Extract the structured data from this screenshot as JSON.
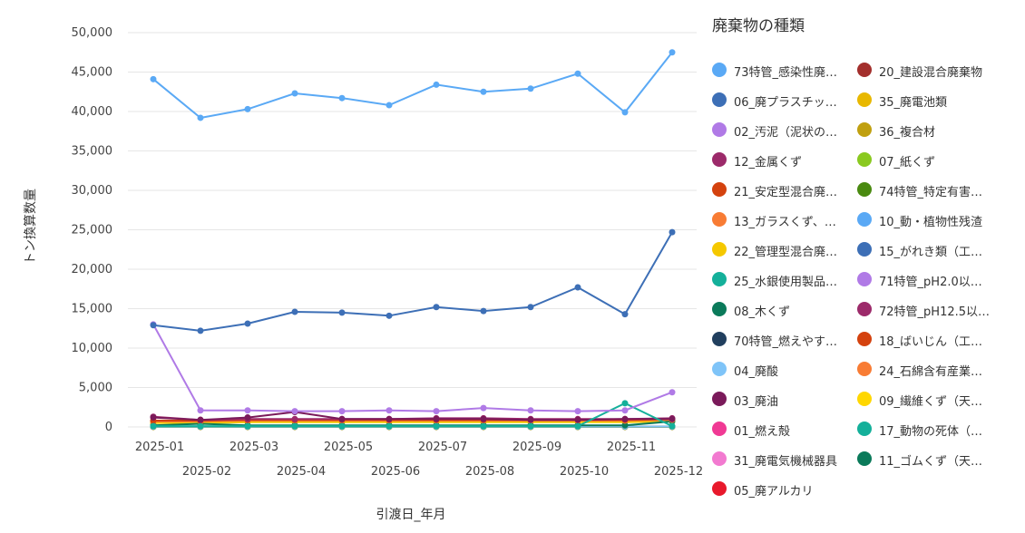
{
  "chart_data": {
    "type": "line",
    "xlabel": "引渡日_年月",
    "ylabel": "トン換算数量",
    "ylim": [
      0,
      50000
    ],
    "yticks": [
      0,
      5000,
      10000,
      15000,
      20000,
      25000,
      30000,
      35000,
      40000,
      45000,
      50000
    ],
    "ytick_labels": [
      "0",
      "5,000",
      "10,000",
      "15,000",
      "20,000",
      "25,000",
      "30,000",
      "35,000",
      "40,000",
      "45,000",
      "50,000"
    ],
    "categories": [
      "2025-01",
      "2025-02",
      "2025-03",
      "2025-04",
      "2025-05",
      "2025-06",
      "2025-07",
      "2025-08",
      "2025-09",
      "2025-10",
      "2025-11",
      "2025-12"
    ],
    "grid": true,
    "legend_placement": "right",
    "legend_title": "廃棄物の種類",
    "series": [
      {
        "name": "73特管_感染性廃…",
        "color": "#5aa9f5",
        "values": [
          44100,
          39200,
          40300,
          42300,
          41700,
          40800,
          43400,
          42500,
          42900,
          44800,
          39900,
          47500
        ]
      },
      {
        "name": "06_廃プラスチッ…",
        "color": "#3d6fb6",
        "values": [
          12900,
          12200,
          13100,
          14600,
          14500,
          14100,
          15200,
          14700,
          15200,
          17700,
          14300,
          24700
        ]
      },
      {
        "name": "02_汚泥（泥状の…",
        "color": "#b07ae6",
        "values": [
          13000,
          2100,
          2100,
          2000,
          2000,
          2100,
          2000,
          2400,
          2100,
          2000,
          2100,
          4400
        ]
      },
      {
        "name": "12_金属くず",
        "color": "#9c2a6a",
        "values": [
          1300,
          900,
          1000,
          1000,
          1000,
          1000,
          1100,
          1100,
          1000,
          1000,
          1000,
          1100
        ]
      },
      {
        "name": "21_安定型混合廃…",
        "color": "#d4420e",
        "values": [
          800,
          800,
          900,
          900,
          900,
          900,
          900,
          900,
          900,
          900,
          900,
          1000
        ]
      },
      {
        "name": "13_ガラスくず、…",
        "color": "#f87c34",
        "values": [
          700,
          700,
          800,
          800,
          800,
          800,
          800,
          800,
          800,
          800,
          800,
          900
        ]
      },
      {
        "name": "22_管理型混合廃…",
        "color": "#f5c800",
        "values": [
          500,
          500,
          600,
          600,
          600,
          600,
          600,
          600,
          600,
          600,
          600,
          700
        ]
      },
      {
        "name": "25_水銀使用製品…",
        "color": "#14b09a",
        "values": [
          100,
          100,
          100,
          100,
          100,
          100,
          100,
          100,
          100,
          100,
          3000,
          100
        ]
      },
      {
        "name": "08_木くず",
        "color": "#0b7a5a",
        "values": [
          200,
          400,
          200,
          200,
          200,
          200,
          200,
          200,
          200,
          200,
          200,
          700
        ]
      },
      {
        "name": "70特管_燃えやす…",
        "color": "#213f5e",
        "values": [
          50,
          50,
          50,
          50,
          50,
          50,
          50,
          50,
          50,
          50,
          50,
          50
        ]
      },
      {
        "name": "04_廃酸",
        "color": "#7fc4f8",
        "values": [
          50,
          50,
          50,
          50,
          50,
          50,
          50,
          50,
          50,
          50,
          50,
          50
        ]
      },
      {
        "name": "03_廃油",
        "color": "#7a1a5a",
        "values": [
          1200,
          900,
          1200,
          1900,
          1000,
          1000,
          1000,
          1000,
          900,
          900,
          1000,
          1000
        ]
      },
      {
        "name": "01_燃え殻",
        "color": "#f03a94",
        "values": [
          20,
          20,
          20,
          20,
          20,
          20,
          20,
          20,
          20,
          20,
          20,
          20
        ]
      },
      {
        "name": "31_廃電気機械器具",
        "color": "#f27ad0",
        "values": [
          20,
          20,
          20,
          20,
          20,
          20,
          20,
          20,
          20,
          20,
          20,
          20
        ]
      },
      {
        "name": "05_廃アルカリ",
        "color": "#e8192c",
        "values": [
          20,
          20,
          20,
          20,
          20,
          20,
          20,
          20,
          20,
          20,
          20,
          20
        ]
      },
      {
        "name": "20_建設混合廃棄物",
        "color": "#a32f2c",
        "values": [
          30,
          30,
          30,
          30,
          30,
          30,
          30,
          30,
          30,
          30,
          30,
          30
        ]
      },
      {
        "name": "35_廃電池類",
        "color": "#e8b800",
        "values": [
          30,
          30,
          30,
          30,
          30,
          30,
          30,
          30,
          30,
          30,
          30,
          30
        ]
      },
      {
        "name": "36_複合材",
        "color": "#c0a010",
        "values": [
          30,
          30,
          30,
          30,
          30,
          30,
          30,
          30,
          30,
          30,
          30,
          30
        ]
      },
      {
        "name": "07_紙くず",
        "color": "#8ac920",
        "values": [
          30,
          30,
          30,
          30,
          30,
          30,
          30,
          30,
          30,
          30,
          30,
          30
        ]
      },
      {
        "name": "74特管_特定有害…",
        "color": "#4a8a10",
        "values": [
          20,
          20,
          20,
          20,
          20,
          20,
          20,
          20,
          20,
          20,
          20,
          20
        ]
      },
      {
        "name": "10_動・植物性残渣",
        "color": "#5aa9f5",
        "values": [
          20,
          20,
          20,
          20,
          20,
          20,
          20,
          20,
          20,
          20,
          20,
          20
        ]
      },
      {
        "name": "15_がれき類（工…",
        "color": "#3d6fb6",
        "values": [
          20,
          20,
          20,
          20,
          20,
          20,
          20,
          20,
          20,
          20,
          20,
          20
        ]
      },
      {
        "name": "71特管_pH2.0以…",
        "color": "#b07ae6",
        "values": [
          20,
          20,
          20,
          20,
          20,
          20,
          20,
          20,
          20,
          20,
          20,
          20
        ]
      },
      {
        "name": "72特管_pH12.5以…",
        "color": "#9c2a6a",
        "values": [
          20,
          20,
          20,
          20,
          20,
          20,
          20,
          20,
          20,
          20,
          20,
          20
        ]
      },
      {
        "name": "18_ばいじん（工…",
        "color": "#d4420e",
        "values": [
          20,
          20,
          20,
          20,
          20,
          20,
          20,
          20,
          20,
          20,
          20,
          20
        ]
      },
      {
        "name": "24_石綿含有産業…",
        "color": "#f87c34",
        "values": [
          20,
          20,
          20,
          20,
          20,
          20,
          20,
          20,
          20,
          20,
          20,
          20
        ]
      },
      {
        "name": "09_繊維くず（天…",
        "color": "#ffd700",
        "values": [
          20,
          20,
          20,
          20,
          20,
          20,
          20,
          20,
          20,
          20,
          20,
          20
        ]
      },
      {
        "name": "17_動物の死体（…",
        "color": "#14b09a",
        "values": [
          20,
          20,
          20,
          20,
          20,
          20,
          20,
          20,
          20,
          20,
          20,
          20
        ]
      },
      {
        "name": "11_ゴムくず（天…",
        "color": "#0b7a5a",
        "values": [
          20,
          20,
          20,
          20,
          20,
          20,
          20,
          20,
          20,
          20,
          20,
          20
        ]
      }
    ]
  }
}
